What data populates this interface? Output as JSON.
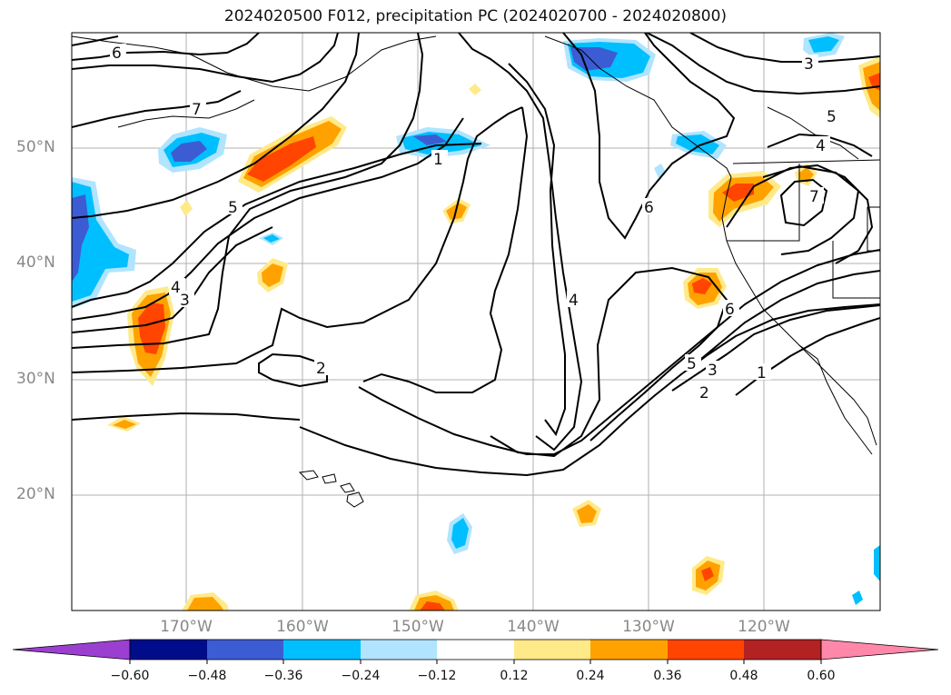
{
  "title": "2024020500 F012, precipitation PC (2024020700 - 2024020800)",
  "lat_labels": [
    "50°N",
    "40°N",
    "30°N",
    "20°N"
  ],
  "lon_labels": [
    "170°W",
    "160°W",
    "150°W",
    "140°W",
    "130°W",
    "120°W"
  ],
  "colorbar": {
    "ticks": [
      "−0.60",
      "−0.48",
      "−0.36",
      "−0.24",
      "−0.12",
      "0.12",
      "0.24",
      "0.36",
      "0.48",
      "0.60"
    ],
    "colors": [
      "#9b3fd1",
      "#000d8a",
      "#3c5cd3",
      "#00bfff",
      "#b0e4ff",
      "#ffffff",
      "#ffea8a",
      "#ffa200",
      "#ff4500",
      "#b22222",
      "#ff88aa"
    ]
  },
  "contour_labels": [
    "6",
    "7",
    "5",
    "4",
    "3",
    "1",
    "2",
    "4",
    "6",
    "5",
    "3",
    "2",
    "1",
    "3",
    "5",
    "4",
    "6",
    "7"
  ],
  "fill_colors": {
    "pos1": "#ffea8a",
    "pos2": "#ffa200",
    "pos3": "#ff4500",
    "neg1": "#b0e4ff",
    "neg2": "#00bfff",
    "neg3": "#3c5cd3"
  }
}
